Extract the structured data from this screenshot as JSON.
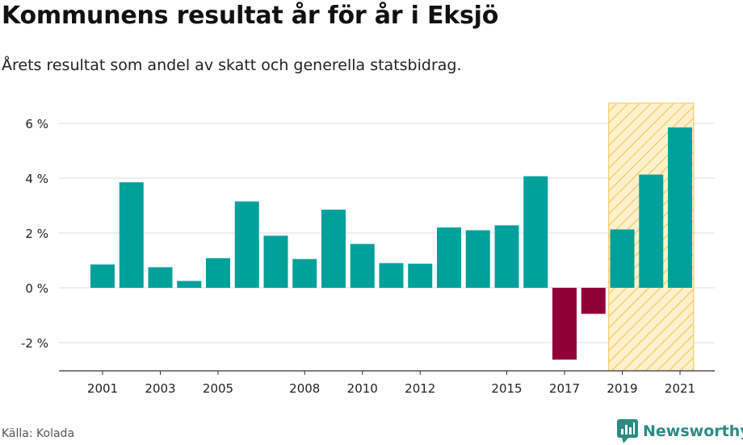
{
  "title": "Kommunens resultat år för år i Eksjö",
  "subtitle": "Årets resultat som andel av skatt och generella statsbidrag.",
  "source": "Källa: Kolada",
  "brand": "Newsworthy",
  "colors": {
    "positive": "#00a19a",
    "negative": "#8f0039",
    "highlight_fill": "#fde6b0",
    "highlight_stroke": "#f5c850",
    "brand": "#2a8c84"
  },
  "chart_data": {
    "type": "bar",
    "categories": [
      "2001",
      "2002",
      "2003",
      "2004",
      "2005",
      "2006",
      "2007",
      "2008",
      "2009",
      "2010",
      "2011",
      "2012",
      "2013",
      "2014",
      "2015",
      "2016",
      "2017",
      "2018",
      "2019",
      "2020",
      "2021"
    ],
    "values": [
      0.85,
      3.85,
      0.75,
      0.25,
      1.08,
      3.15,
      1.9,
      1.05,
      2.85,
      1.6,
      0.9,
      0.88,
      2.2,
      2.1,
      2.28,
      4.07,
      -2.62,
      -0.95,
      2.13,
      4.13,
      5.85
    ],
    "x_tick_labels": [
      "2001",
      "2003",
      "2005",
      "2008",
      "2010",
      "2012",
      "2015",
      "2017",
      "2019",
      "2021"
    ],
    "y_ticks": [
      -2,
      0,
      2,
      4,
      6
    ],
    "y_tick_labels": [
      "-2 %",
      "0 %",
      "2 %",
      "4 %",
      "6 %"
    ],
    "ylim": [
      -3.05,
      6.8
    ],
    "grid": true,
    "highlight": {
      "from": "2019",
      "to": "2021",
      "pattern": "hatched"
    }
  }
}
